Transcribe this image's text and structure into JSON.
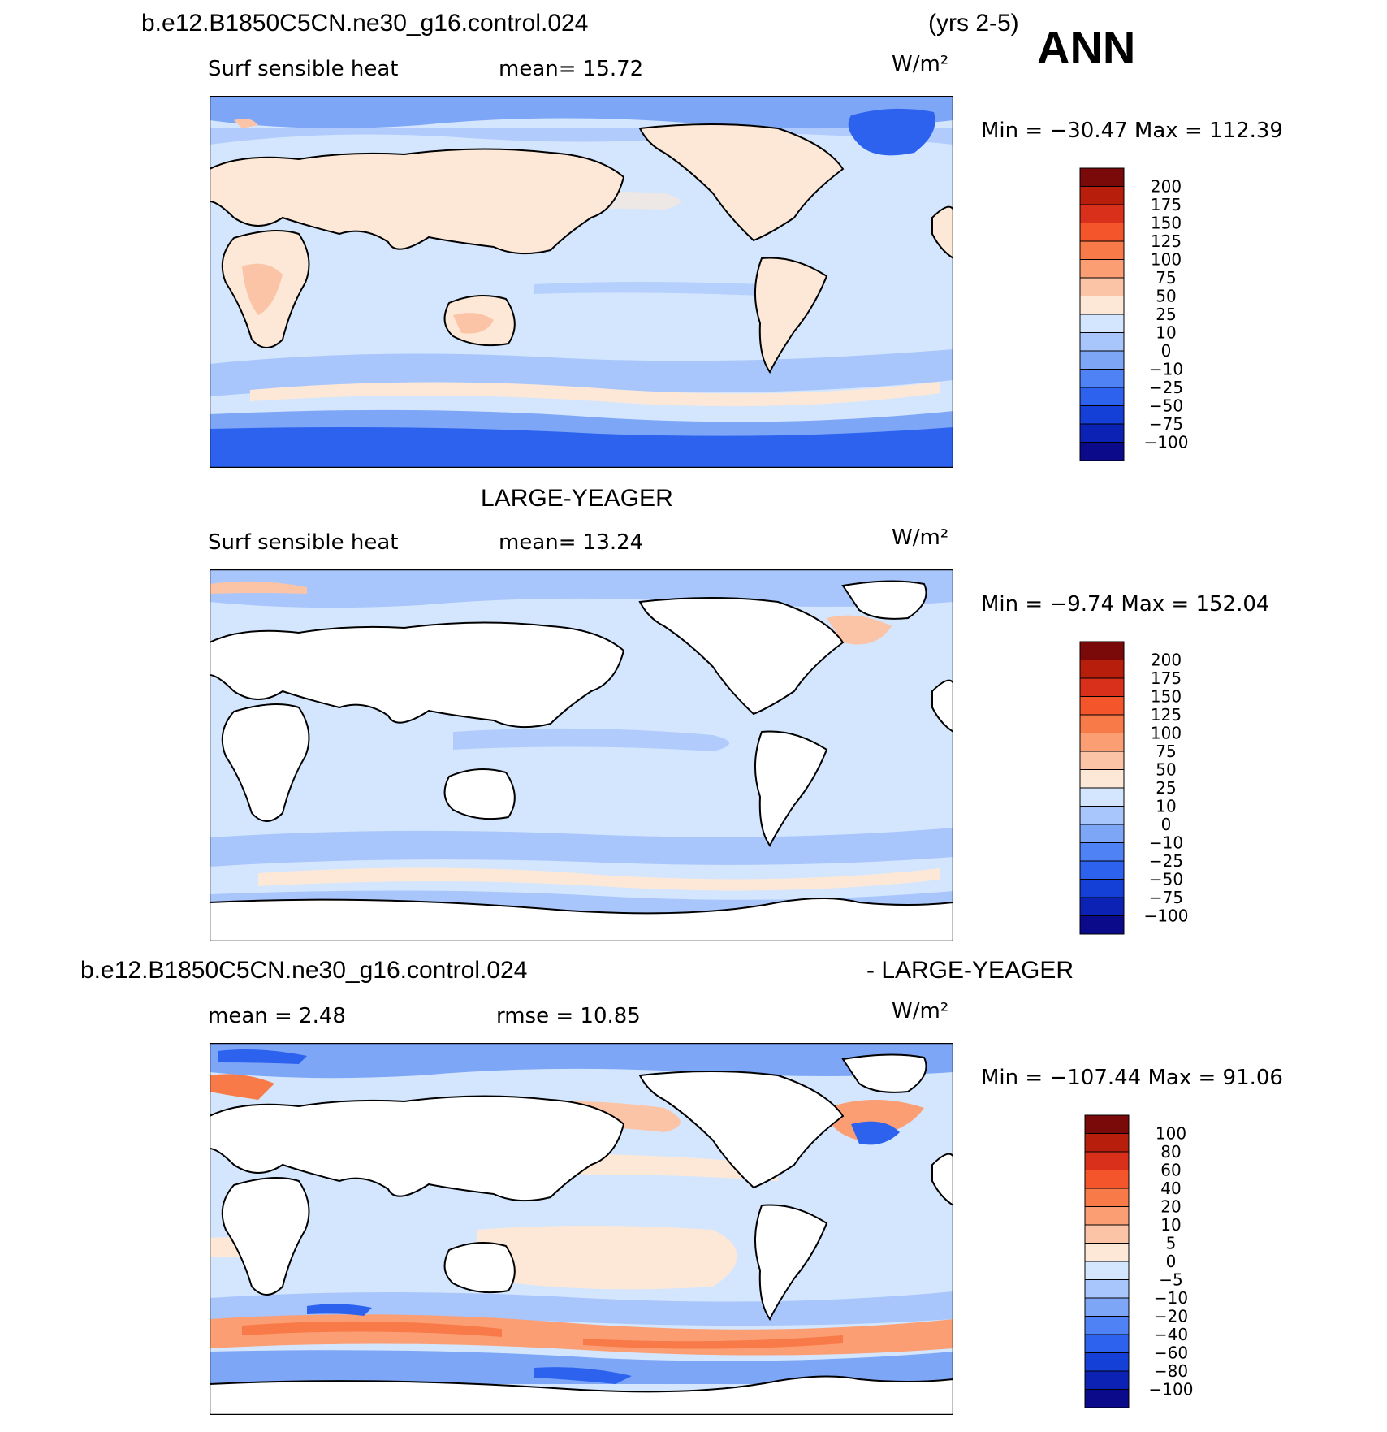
{
  "header": {
    "case_title": "b.e12.B1850C5CN.ne30_g16.control.024",
    "years": "(yrs 2-5)",
    "season": "ANN"
  },
  "colors": {
    "land_white": "#ffffff",
    "c_m100": "#0a0a8a",
    "c_m75": "#0b22b4",
    "c_m50": "#1540d8",
    "c_m25": "#2d62ef",
    "c_m10": "#4f82f5",
    "c_0": "#7ea6f7",
    "c_10": "#a8c6fb",
    "c_25": "#d4e6fd",
    "c_50": "#fde8d7",
    "c_75": "#fcc4a6",
    "c_100": "#fb9e74",
    "c_125": "#f87a48",
    "c_150": "#f5552a",
    "c_175": "#d9301c",
    "c_200": "#b81e0c",
    "c_top": "#7a0a0a"
  },
  "panels": [
    {
      "id": "panel-1",
      "caption": "",
      "left_label": "Surf  sensible  heat",
      "mid_label": "mean=   15.72",
      "units": "W/m²",
      "minmax": "Min  =  −30.47  Max  =  112.39",
      "colorbar_labels": [
        "200",
        "175",
        "150",
        "125",
        "100",
        "75",
        "50",
        "25",
        "10",
        "0",
        "−10",
        "−25",
        "−50",
        "−75",
        "−100"
      ]
    },
    {
      "id": "panel-2",
      "caption": "LARGE-YEAGER",
      "left_label": "Surf  sensible  heat",
      "mid_label": "mean=   13.24",
      "units": "W/m²",
      "minmax": "Min  =    −9.74  Max  =  152.04",
      "colorbar_labels": [
        "200",
        "175",
        "150",
        "125",
        "100",
        "75",
        "50",
        "25",
        "10",
        "0",
        "−10",
        "−25",
        "−50",
        "−75",
        "−100"
      ]
    },
    {
      "id": "panel-3",
      "caption_left": "b.e12.B1850C5CN.ne30_g16.control.024",
      "caption_right": "- LARGE-YEAGER",
      "left_label": "mean  =     2.48",
      "mid_label": "rmse  =    10.85",
      "units": "W/m²",
      "minmax": "Min  =  −107.44  Max  =    91.06",
      "colorbar_labels": [
        "100",
        "80",
        "60",
        "40",
        "20",
        "10",
        "5",
        "0",
        "−5",
        "−10",
        "−20",
        "−40",
        "−60",
        "−80",
        "−100"
      ]
    }
  ]
}
